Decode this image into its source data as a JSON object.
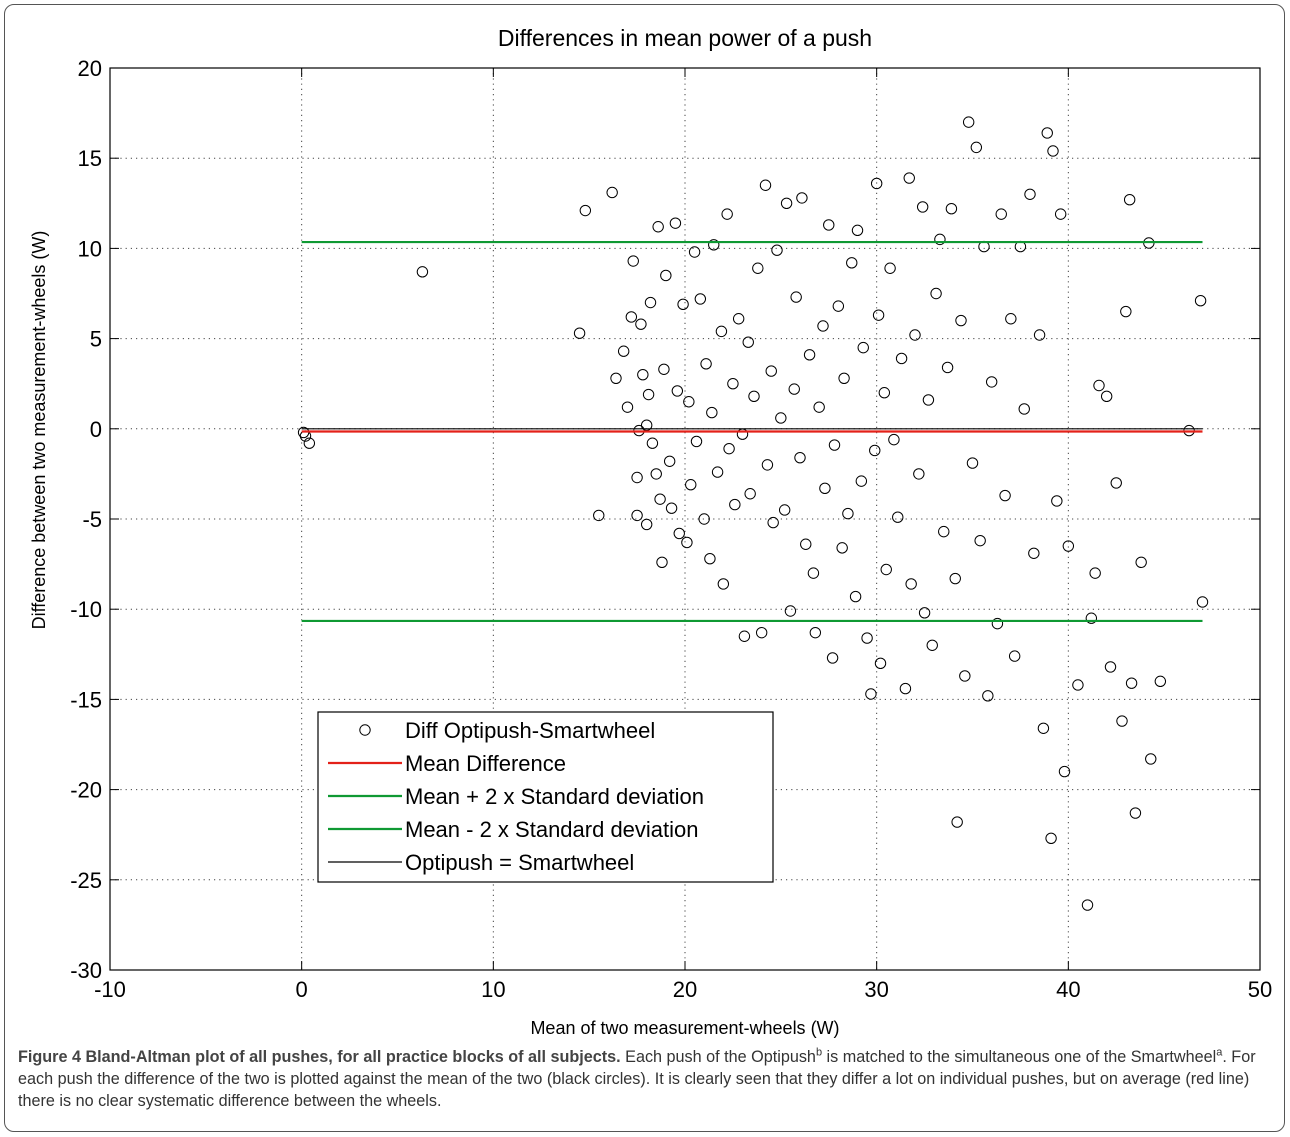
{
  "chart_data": {
    "type": "scatter",
    "title": "Differences in mean power of a push",
    "xlabel": "Mean of two measurement-wheels (W)",
    "ylabel": "Difference between two measurement-wheels (W)",
    "xlim": [
      -10,
      50
    ],
    "ylim": [
      -30,
      20
    ],
    "xticks": [
      -10,
      0,
      10,
      20,
      30,
      40,
      50
    ],
    "yticks": [
      -30,
      -25,
      -20,
      -15,
      -10,
      -5,
      0,
      5,
      10,
      15,
      20
    ],
    "grid": true,
    "legend": {
      "placement": "lower-left",
      "entries": [
        {
          "label": "Diff Optipush-Smartwheel",
          "style": "marker-circle",
          "color": "#000000"
        },
        {
          "label": "Mean Difference",
          "style": "line",
          "color": "#e32119"
        },
        {
          "label": "Mean + 2 x Standard deviation",
          "style": "line",
          "color": "#0f9933"
        },
        {
          "label": "Mean - 2 x Standard deviation",
          "style": "line",
          "color": "#0f9933"
        },
        {
          "label": "Optipush = Smartwheel",
          "style": "line",
          "color": "#000000"
        }
      ]
    },
    "lines": [
      {
        "name": "Mean Difference",
        "y": -0.15,
        "x": [
          0,
          47
        ],
        "color": "#e32119"
      },
      {
        "name": "Mean + 2 x Standard deviation",
        "y": 10.35,
        "x": [
          0,
          47
        ],
        "color": "#0f9933"
      },
      {
        "name": "Mean - 2 x Standard deviation",
        "y": -10.65,
        "x": [
          0,
          47
        ],
        "color": "#0f9933"
      },
      {
        "name": "Optipush = Smartwheel",
        "y": 0,
        "x": [
          0,
          47
        ],
        "color": "#000000"
      }
    ],
    "series": [
      {
        "name": "Diff Optipush-Smartwheel",
        "points": [
          [
            0.1,
            -0.2
          ],
          [
            0.2,
            -0.4
          ],
          [
            0.4,
            -0.8
          ],
          [
            6.3,
            8.7
          ],
          [
            14.5,
            5.3
          ],
          [
            14.8,
            12.1
          ],
          [
            15.5,
            -4.8
          ],
          [
            16.2,
            13.1
          ],
          [
            16.4,
            2.8
          ],
          [
            16.8,
            4.3
          ],
          [
            17.0,
            1.2
          ],
          [
            17.2,
            6.2
          ],
          [
            17.3,
            9.3
          ],
          [
            17.5,
            -4.8
          ],
          [
            17.5,
            -2.7
          ],
          [
            17.6,
            -0.1
          ],
          [
            17.7,
            5.8
          ],
          [
            17.8,
            3.0
          ],
          [
            18.0,
            -5.3
          ],
          [
            18.0,
            0.2
          ],
          [
            18.1,
            1.9
          ],
          [
            18.2,
            7.0
          ],
          [
            18.3,
            -0.8
          ],
          [
            18.5,
            -2.5
          ],
          [
            18.6,
            11.2
          ],
          [
            18.7,
            -3.9
          ],
          [
            18.8,
            -7.4
          ],
          [
            18.9,
            3.3
          ],
          [
            19.0,
            8.5
          ],
          [
            19.2,
            -1.8
          ],
          [
            19.3,
            -4.4
          ],
          [
            19.5,
            11.4
          ],
          [
            19.6,
            2.1
          ],
          [
            19.7,
            -5.8
          ],
          [
            19.9,
            6.9
          ],
          [
            20.1,
            -6.3
          ],
          [
            20.2,
            1.5
          ],
          [
            20.3,
            -3.1
          ],
          [
            20.5,
            9.8
          ],
          [
            20.6,
            -0.7
          ],
          [
            20.8,
            7.2
          ],
          [
            21.0,
            -5.0
          ],
          [
            21.1,
            3.6
          ],
          [
            21.3,
            -7.2
          ],
          [
            21.4,
            0.9
          ],
          [
            21.5,
            10.2
          ],
          [
            21.7,
            -2.4
          ],
          [
            21.9,
            5.4
          ],
          [
            22.0,
            -8.6
          ],
          [
            22.2,
            11.9
          ],
          [
            22.3,
            -1.1
          ],
          [
            22.5,
            2.5
          ],
          [
            22.6,
            -4.2
          ],
          [
            22.8,
            6.1
          ],
          [
            23.0,
            -0.3
          ],
          [
            23.1,
            -11.5
          ],
          [
            23.3,
            4.8
          ],
          [
            23.4,
            -3.6
          ],
          [
            23.6,
            1.8
          ],
          [
            23.8,
            8.9
          ],
          [
            24.0,
            -11.3
          ],
          [
            24.2,
            13.5
          ],
          [
            24.3,
            -2.0
          ],
          [
            24.5,
            3.2
          ],
          [
            24.6,
            -5.2
          ],
          [
            24.8,
            9.9
          ],
          [
            25.0,
            0.6
          ],
          [
            25.2,
            -4.5
          ],
          [
            25.3,
            12.5
          ],
          [
            25.5,
            -10.1
          ],
          [
            25.7,
            2.2
          ],
          [
            25.8,
            7.3
          ],
          [
            26.0,
            -1.6
          ],
          [
            26.1,
            12.8
          ],
          [
            26.3,
            -6.4
          ],
          [
            26.5,
            4.1
          ],
          [
            26.7,
            -8.0
          ],
          [
            26.8,
            -11.3
          ],
          [
            27.0,
            1.2
          ],
          [
            27.2,
            5.7
          ],
          [
            27.3,
            -3.3
          ],
          [
            27.5,
            11.3
          ],
          [
            27.7,
            -12.7
          ],
          [
            27.8,
            -0.9
          ],
          [
            28.0,
            6.8
          ],
          [
            28.2,
            -6.6
          ],
          [
            28.3,
            2.8
          ],
          [
            28.5,
            -4.7
          ],
          [
            28.7,
            9.2
          ],
          [
            28.9,
            -9.3
          ],
          [
            29.0,
            11.0
          ],
          [
            29.2,
            -2.9
          ],
          [
            29.3,
            4.5
          ],
          [
            29.5,
            -11.6
          ],
          [
            29.7,
            -14.7
          ],
          [
            29.9,
            -1.2
          ],
          [
            30.0,
            13.6
          ],
          [
            30.1,
            6.3
          ],
          [
            30.2,
            -13.0
          ],
          [
            30.4,
            2.0
          ],
          [
            30.5,
            -7.8
          ],
          [
            30.7,
            8.9
          ],
          [
            30.9,
            -0.6
          ],
          [
            31.1,
            -4.9
          ],
          [
            31.3,
            3.9
          ],
          [
            31.5,
            -14.4
          ],
          [
            31.7,
            13.9
          ],
          [
            31.8,
            -8.6
          ],
          [
            32.0,
            5.2
          ],
          [
            32.2,
            -2.5
          ],
          [
            32.4,
            12.3
          ],
          [
            32.5,
            -10.2
          ],
          [
            32.7,
            1.6
          ],
          [
            32.9,
            -12.0
          ],
          [
            33.1,
            7.5
          ],
          [
            33.3,
            10.5
          ],
          [
            33.5,
            -5.7
          ],
          [
            33.7,
            3.4
          ],
          [
            33.9,
            12.2
          ],
          [
            34.1,
            -8.3
          ],
          [
            34.2,
            -21.8
          ],
          [
            34.4,
            6.0
          ],
          [
            34.6,
            -13.7
          ],
          [
            34.8,
            17.0
          ],
          [
            35.0,
            -1.9
          ],
          [
            35.2,
            15.6
          ],
          [
            35.4,
            -6.2
          ],
          [
            35.6,
            10.1
          ],
          [
            35.8,
            -14.8
          ],
          [
            36.0,
            2.6
          ],
          [
            36.3,
            -10.8
          ],
          [
            36.5,
            11.9
          ],
          [
            36.7,
            -3.7
          ],
          [
            37.0,
            6.1
          ],
          [
            37.2,
            -12.6
          ],
          [
            37.5,
            10.1
          ],
          [
            37.7,
            1.1
          ],
          [
            38.0,
            13.0
          ],
          [
            38.2,
            -6.9
          ],
          [
            38.5,
            5.2
          ],
          [
            38.7,
            -16.6
          ],
          [
            38.9,
            16.4
          ],
          [
            39.1,
            -22.7
          ],
          [
            39.2,
            15.4
          ],
          [
            39.4,
            -4.0
          ],
          [
            39.6,
            11.9
          ],
          [
            39.8,
            -19.0
          ],
          [
            40.0,
            -6.5
          ],
          [
            40.5,
            -14.2
          ],
          [
            41.0,
            -26.4
          ],
          [
            41.2,
            -10.5
          ],
          [
            41.4,
            -8.0
          ],
          [
            41.6,
            2.4
          ],
          [
            42.0,
            1.8
          ],
          [
            42.2,
            -13.2
          ],
          [
            42.5,
            -3.0
          ],
          [
            42.8,
            -16.2
          ],
          [
            43.0,
            6.5
          ],
          [
            43.2,
            12.7
          ],
          [
            43.3,
            -14.1
          ],
          [
            43.5,
            -21.3
          ],
          [
            43.8,
            -7.4
          ],
          [
            44.2,
            10.3
          ],
          [
            44.3,
            -18.3
          ],
          [
            44.8,
            -14.0
          ],
          [
            46.3,
            -0.1
          ],
          [
            46.9,
            7.1
          ],
          [
            47.0,
            -9.6
          ]
        ]
      }
    ]
  },
  "caption": {
    "lead": "Figure 4 Bland-Altman plot of all pushes, for all practice blocks of all subjects.",
    "text_1": " Each push of the Optipush",
    "sup_1": "b",
    "text_2": " is matched to the simultaneous one of the Smartwheel",
    "sup_2": "a",
    "text_3": ". For each push the difference of the two is plotted against the mean of the two (black circles). It is clearly seen that they differ a lot on individual pushes, but on average (red line) there is no clear systematic difference between the wheels."
  }
}
